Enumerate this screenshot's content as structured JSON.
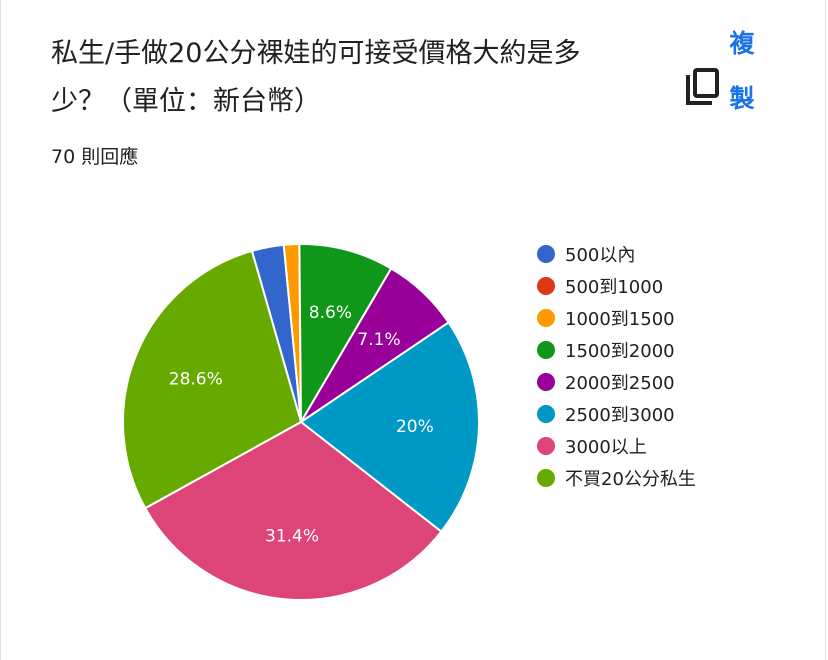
{
  "question": {
    "title": "私生/手做20公分裸娃的可接受價格大約是多少？（單位：新台幣）",
    "response_count": "70 則回應"
  },
  "actions": {
    "copy_label": "複製",
    "copy_icon": "copy-icon"
  },
  "chart_data": {
    "type": "pie",
    "title": "",
    "legend_position": "right",
    "start_angle_deg": -16,
    "slices": [
      {
        "label": "500以內",
        "percent": 2.9,
        "display": "",
        "color": "#3366cc"
      },
      {
        "label": "500到1000",
        "percent": 0,
        "display": "",
        "color": "#dc3912"
      },
      {
        "label": "1000到1500",
        "percent": 1.4,
        "display": "",
        "color": "#ff9900"
      },
      {
        "label": "1500到2000",
        "percent": 8.6,
        "display": "8.6%",
        "color": "#109618"
      },
      {
        "label": "2000到2500",
        "percent": 7.1,
        "display": "7.1%",
        "color": "#990099"
      },
      {
        "label": "2500到3000",
        "percent": 20,
        "display": "20%",
        "color": "#0099c6"
      },
      {
        "label": "3000以上",
        "percent": 31.4,
        "display": "31.4%",
        "color": "#dd4477"
      },
      {
        "label": "不買20公分私生",
        "percent": 28.6,
        "display": "28.6%",
        "color": "#66aa00"
      }
    ]
  }
}
